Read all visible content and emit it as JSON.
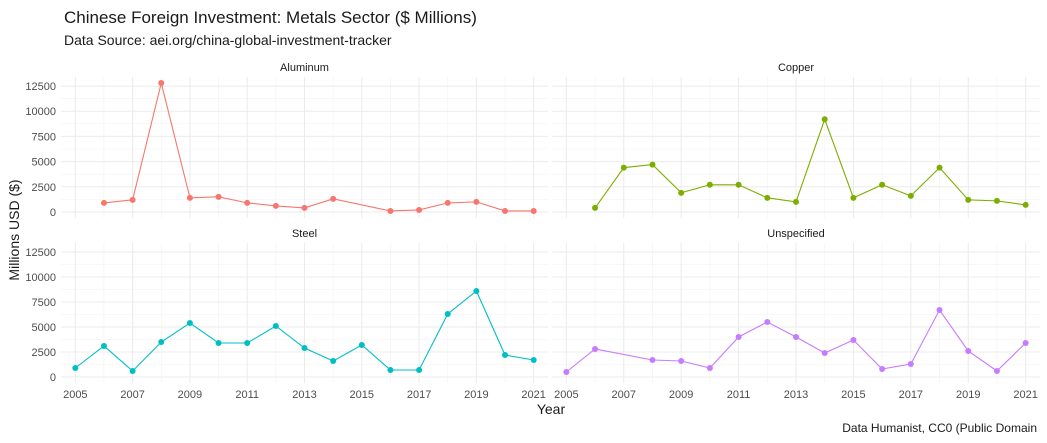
{
  "title": "Chinese Foreign Investment: Metals Sector ($ Millions)",
  "subtitle": "Data Source: aei.org/china-global-investment-tracker",
  "caption": "Data Humanist, CC0 (Public Domain",
  "chart_data": {
    "type": "line",
    "xlabel": "Year",
    "ylabel": "Millions USD ($)",
    "xlim": [
      2004.5,
      2021.5
    ],
    "ylim": [
      -600,
      13400
    ],
    "x_ticks": [
      2005,
      2007,
      2009,
      2011,
      2013,
      2015,
      2017,
      2019,
      2021
    ],
    "y_ticks": [
      0,
      2500,
      5000,
      7500,
      10000,
      12500
    ],
    "x_tick_labels": [
      "2005",
      "2007",
      "2009",
      "2011",
      "2013",
      "2015",
      "2017",
      "2019",
      "2021"
    ],
    "y_tick_labels": [
      "0",
      "2500",
      "5000",
      "7500",
      "10000",
      "12500"
    ],
    "grid": true,
    "legend": "none",
    "facets": [
      {
        "name": "Aluminum",
        "color": "#F8766D",
        "x": [
          2006,
          2007,
          2008,
          2009,
          2010,
          2011,
          2012,
          2013,
          2014,
          2016,
          2017,
          2018,
          2019,
          2020,
          2021
        ],
        "y": [
          900,
          1200,
          12800,
          1400,
          1500,
          900,
          600,
          400,
          1300,
          100,
          200,
          900,
          1000,
          100,
          100
        ]
      },
      {
        "name": "Copper",
        "color": "#7CAE00",
        "x": [
          2006,
          2007,
          2008,
          2009,
          2010,
          2011,
          2012,
          2013,
          2014,
          2015,
          2016,
          2017,
          2018,
          2019,
          2020,
          2021
        ],
        "y": [
          400,
          4400,
          4700,
          1900,
          2700,
          2700,
          1400,
          1000,
          9200,
          1400,
          2700,
          1600,
          4400,
          1200,
          1100,
          700
        ]
      },
      {
        "name": "Steel",
        "color": "#00BFC4",
        "x": [
          2005,
          2006,
          2007,
          2008,
          2009,
          2010,
          2011,
          2012,
          2013,
          2014,
          2015,
          2016,
          2017,
          2018,
          2019,
          2020,
          2021
        ],
        "y": [
          900,
          3100,
          600,
          3500,
          5400,
          3400,
          3400,
          5100,
          2900,
          1600,
          3200,
          700,
          700,
          6300,
          8600,
          2200,
          1700
        ]
      },
      {
        "name": "Unspecified",
        "color": "#C77CFF",
        "x": [
          2005,
          2006,
          2008,
          2009,
          2010,
          2011,
          2012,
          2013,
          2014,
          2015,
          2016,
          2017,
          2018,
          2019,
          2020,
          2021
        ],
        "y": [
          500,
          2800,
          1700,
          1600,
          900,
          4000,
          5500,
          4000,
          2400,
          3700,
          800,
          1300,
          6700,
          2600,
          600,
          3400
        ]
      }
    ]
  }
}
